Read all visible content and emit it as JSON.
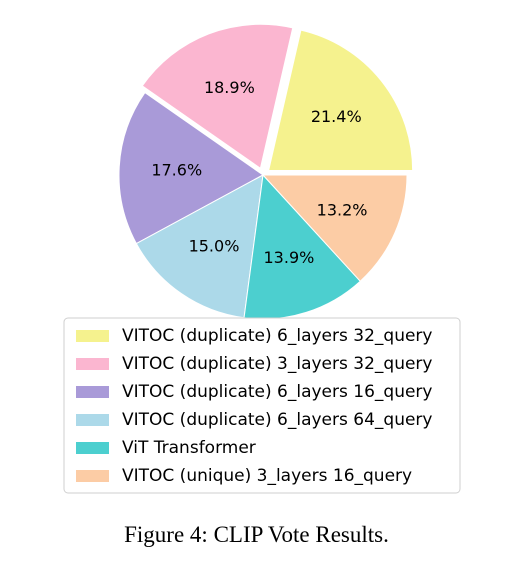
{
  "caption": "Figure 4: CLIP Vote Results.",
  "chart_data": {
    "type": "pie",
    "title": "",
    "categories": [
      "VITOC (duplicate) 6_layers 32_query",
      "VITOC (duplicate) 3_layers 32_query",
      "VITOC (duplicate) 6_layers 16_query",
      "VITOC (duplicate) 6_layers 64_query",
      "ViT Transformer",
      "VITOC (unique) 3_layers 16_query"
    ],
    "values": [
      21.4,
      18.9,
      17.6,
      15.0,
      13.9,
      13.2
    ],
    "labels": [
      "21.4%",
      "18.9%",
      "17.6%",
      "15.0%",
      "13.9%",
      "13.2%"
    ],
    "colors": [
      "#f5f28e",
      "#fbb6d0",
      "#a99ad8",
      "#acd9e9",
      "#4ccfcf",
      "#fccca5"
    ],
    "exploded": [
      0,
      1
    ],
    "start_angle_deg": 0,
    "direction": "counterclockwise",
    "legend_position": "bottom"
  }
}
